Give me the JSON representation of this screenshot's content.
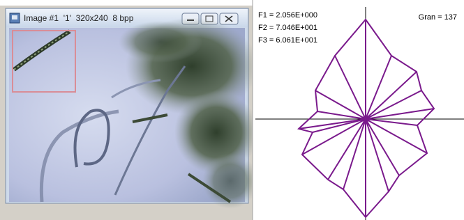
{
  "window": {
    "title": "Image #1  '1'  320x240  8 bpp"
  },
  "plot": {
    "labels": [
      "F1 = 2.056E+000",
      "F2 = 7.046E+001",
      "F3 = 6.061E+001"
    ],
    "gran": "Gran = 137"
  }
}
